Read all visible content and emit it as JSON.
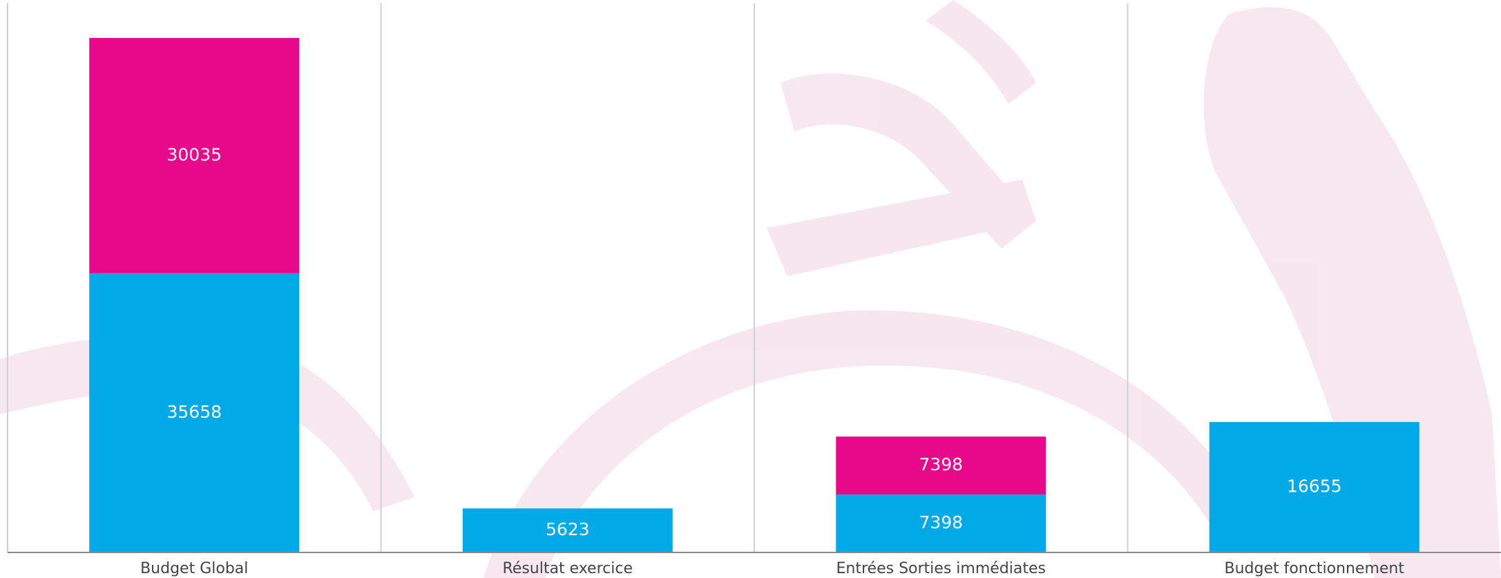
{
  "chart_data": {
    "type": "stacked-bar",
    "categories": [
      "Budget Global",
      "Résultat exercice",
      "Entrées Sorties immédiates",
      "Budget fonctionnement"
    ],
    "series": [
      {
        "color": "#02a9e7",
        "values": [
          35658,
          5623,
          7398,
          16655
        ]
      },
      {
        "color": "#e8088a",
        "values": [
          30035,
          null,
          7398,
          null
        ]
      }
    ]
  }
}
